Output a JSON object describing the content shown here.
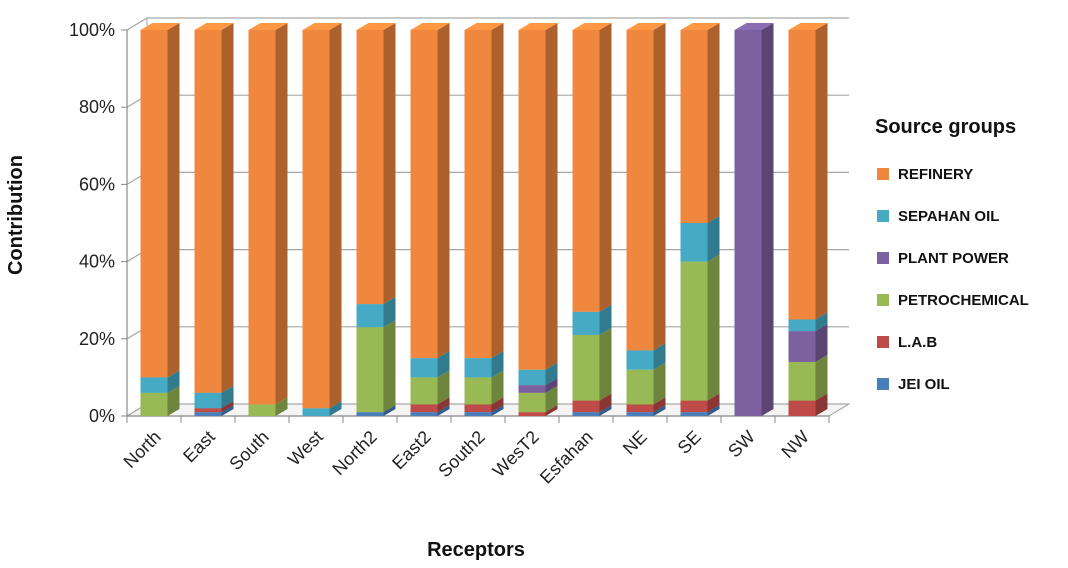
{
  "chart_data": {
    "type": "bar",
    "stacked": true,
    "percent_stacked": true,
    "three_d": true,
    "xlabel": "Receptors",
    "ylabel": "Contribution",
    "ylim": [
      0,
      100
    ],
    "y_ticks": [
      "0%",
      "20%",
      "40%",
      "60%",
      "80%",
      "100%"
    ],
    "grid": true,
    "legend_position": "right",
    "legend_title": "Source groups",
    "categories": [
      "North",
      "East",
      "South",
      "West",
      "North2",
      "East2",
      "South2",
      "WesT2",
      "Esfahan",
      "NE",
      "SE",
      "SW",
      "NW"
    ],
    "series": [
      {
        "name": "JEI OIL",
        "color": "#4a7ebb",
        "values": [
          0,
          1,
          0,
          0,
          1,
          1,
          1,
          0,
          1,
          1,
          1,
          0,
          0
        ]
      },
      {
        "name": "L.A.B",
        "color": "#be4b48",
        "values": [
          0,
          1,
          0,
          0,
          0,
          2,
          2,
          1,
          3,
          2,
          3,
          0,
          4
        ]
      },
      {
        "name": "PETROCHEMICAL",
        "color": "#98b954",
        "values": [
          6,
          0,
          3,
          0,
          22,
          7,
          7,
          5,
          17,
          9,
          36,
          0,
          10
        ]
      },
      {
        "name": "PLANT POWER",
        "color": "#7d60a0",
        "values": [
          0,
          0,
          0,
          0,
          0,
          0,
          0,
          2,
          0,
          0,
          0,
          100,
          8
        ]
      },
      {
        "name": "SEPAHAN OIL",
        "color": "#46aac5",
        "values": [
          4,
          4,
          0,
          2,
          6,
          5,
          5,
          4,
          6,
          5,
          10,
          0,
          3
        ]
      },
      {
        "name": "REFINERY",
        "color": "#f0873e",
        "values": [
          90,
          94,
          97,
          98,
          71,
          85,
          85,
          88,
          73,
          83,
          50,
          0,
          75
        ]
      }
    ],
    "legend_order": [
      "REFINERY",
      "SEPAHAN OIL",
      "PLANT POWER",
      "PETROCHEMICAL",
      "L.A.B",
      "JEI OIL"
    ]
  }
}
